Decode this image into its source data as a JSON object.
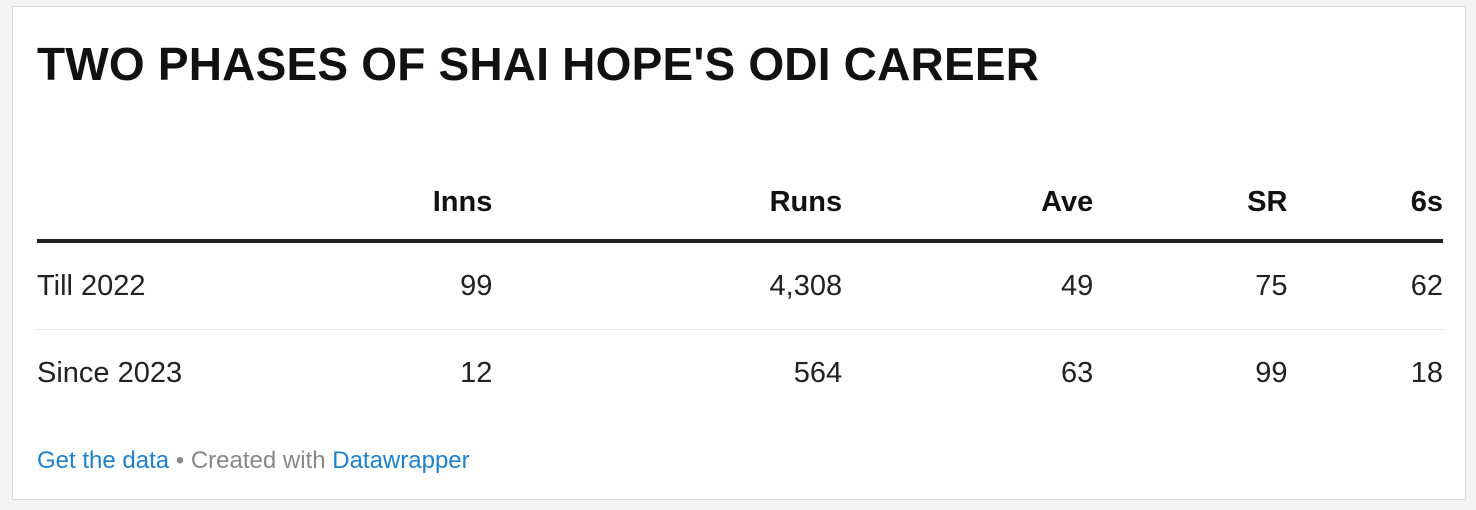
{
  "chart_data": {
    "type": "table",
    "title": "TWO PHASES OF SHAI HOPE'S ODI CAREER",
    "columns": [
      "",
      "Inns",
      "Runs",
      "Ave",
      "SR",
      "6s"
    ],
    "rows": [
      {
        "label": "Till 2022",
        "values": [
          "99",
          "4,308",
          "49",
          "75",
          "62"
        ]
      },
      {
        "label": "Since 2023",
        "values": [
          "12",
          "564",
          "63",
          "99",
          "18"
        ]
      }
    ]
  },
  "footer": {
    "get_data": "Get the data",
    "separator": " • Created with ",
    "datawrapper": "Datawrapper"
  },
  "colors": {
    "link": "#1d81d0",
    "text": "#222222",
    "muted": "#888888"
  }
}
